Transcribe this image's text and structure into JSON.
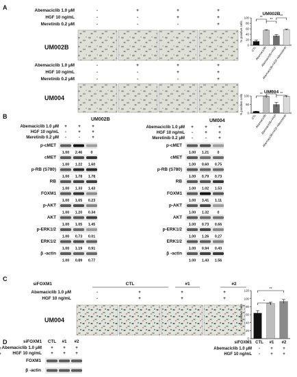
{
  "panels": {
    "A": "A",
    "B": "B",
    "C": "C",
    "D": "D"
  },
  "treat": {
    "aba": "Abemaciclib 1.0 μM",
    "hgf": "HGF 10 ng/mL",
    "mer": "Meretinib 0.2 μM",
    "sifoxm1": "siFOXM1"
  },
  "signs": {
    "A_top": [
      [
        "-",
        "+",
        "+",
        "+"
      ],
      [
        "-",
        "-",
        "+",
        "+"
      ],
      [
        "-",
        "-",
        "-",
        "+"
      ]
    ],
    "A_bot": [
      [
        "-",
        "+",
        "+",
        "+"
      ],
      [
        "-",
        "-",
        "+",
        "+"
      ],
      [
        "-",
        "-",
        "-",
        "+"
      ]
    ],
    "B_left": [
      [
        "+",
        "+",
        "+"
      ],
      [
        "-",
        "+",
        "+"
      ],
      [
        "-",
        "-",
        "+"
      ]
    ],
    "B_right": [
      [
        "+",
        "+",
        "+"
      ],
      [
        "-",
        "+",
        "+"
      ],
      [
        "-",
        "-",
        "+"
      ]
    ],
    "C": [
      [
        "-",
        "+",
        "+",
        "+"
      ],
      [
        "-",
        "+",
        "+",
        "+"
      ]
    ],
    "D": [
      [
        "+",
        "+",
        "+"
      ],
      [
        "+",
        "+",
        "+"
      ]
    ]
  },
  "cell_lines": {
    "um002b": "UM002B",
    "um004": "UM004"
  },
  "siRNA": {
    "ctl": "CTL",
    "n1": "#1",
    "n2": "#2"
  },
  "blot_left": [
    {
      "label": "p-cMET",
      "vals": [
        "1.00",
        "2.46",
        "0"
      ]
    },
    {
      "label": "cMET",
      "vals": [
        "1.00",
        "1.22",
        "1.60"
      ]
    },
    {
      "label": "p-RB (S780)",
      "vals": [
        "1.00",
        "1.78",
        "1.78"
      ]
    },
    {
      "label": "RB",
      "vals": [
        "1.00",
        "1.33",
        "1.43"
      ]
    },
    {
      "label": "FOXM1",
      "vals": [
        "1.00",
        "1.65",
        "0.23"
      ]
    },
    {
      "label": "p-AKT",
      "vals": [
        "1.00",
        "1.20",
        "0.34"
      ]
    },
    {
      "label": "AKT",
      "vals": [
        "1.00",
        "1.05",
        "1.45"
      ]
    },
    {
      "label": "p-ERK1/2",
      "vals": [
        "1.00",
        "0.73",
        "0.01"
      ]
    },
    {
      "label": "ERK1/2",
      "vals": [
        "1.00",
        "1.19",
        "0.91"
      ]
    },
    {
      "label": "β -actin",
      "vals": [
        "1.00",
        "0.89",
        "0.77"
      ]
    }
  ],
  "blot_right": [
    {
      "label": "p-cMET",
      "vals": [
        "1.00",
        "1.21",
        "0"
      ]
    },
    {
      "label": "cMET",
      "vals": [
        "1.00",
        "0.60",
        "0.75"
      ]
    },
    {
      "label": "p-RB (S780)",
      "vals": [
        "1.00",
        "0.79",
        "0.73"
      ]
    },
    {
      "label": "RB",
      "vals": [
        "1.00",
        "1.02",
        "1.53"
      ]
    },
    {
      "label": "FOXM1",
      "vals": [
        "1.00",
        "3.41",
        "1.11"
      ]
    },
    {
      "label": "p-AKT",
      "vals": [
        "1.00",
        "1.32",
        "0"
      ]
    },
    {
      "label": "AKT",
      "vals": [
        "1.00",
        "0.73",
        "0.66"
      ]
    },
    {
      "label": "p-ERK1/2",
      "vals": [
        "1.00",
        "1.26",
        "0.27"
      ]
    },
    {
      "label": "ERK1/2",
      "vals": [
        "1.00",
        "0.94",
        "0.43"
      ]
    },
    {
      "label": "β -actin",
      "vals": [
        "1.00",
        "1.43",
        "1.56"
      ]
    }
  ],
  "blot_d": [
    {
      "label": "FOXM1"
    },
    {
      "label": "β -actin"
    }
  ],
  "chart_data": [
    {
      "type": "bar",
      "title": "UM002B",
      "ylabel": "% positive cells",
      "categories": [
        "CTL",
        "Abemaciclib",
        "Abemaciclib+HGF",
        "Abemaciclib+HGF+Merestinib"
      ],
      "values": [
        14,
        55,
        34,
        57
      ],
      "errors": [
        5,
        2,
        5,
        2
      ],
      "colors": [
        "#111111",
        "#bdbdbd",
        "#6e6e6e",
        "#d9d9d9"
      ],
      "ylim": [
        0,
        100
      ],
      "yticks": [
        "0",
        "20",
        "40",
        "60",
        "80",
        "100"
      ],
      "sig": [
        "**",
        "**",
        "**"
      ]
    },
    {
      "type": "bar",
      "title": "UM004",
      "ylabel": "% positive cells",
      "categories": [
        "CTL",
        "Abemaciclib",
        "Abemaciclib+HGF",
        "Abemaciclib+HGF+Merestinib"
      ],
      "values": [
        10,
        99,
        50,
        99
      ],
      "errors": [
        1,
        1,
        13,
        1
      ],
      "colors": [
        "#111111",
        "#bdbdbd",
        "#6e6e6e",
        "#d9d9d9"
      ],
      "ylim": [
        0,
        100
      ],
      "yticks": [
        "0",
        "50",
        "100"
      ],
      "sig": [
        "**",
        "**",
        "**"
      ]
    },
    {
      "type": "bar",
      "title": "",
      "ylabel": "% positive cells",
      "categories": [
        "CTL",
        "#1",
        "#2"
      ],
      "values": [
        64,
        88,
        93
      ],
      "errors": [
        6,
        3,
        5
      ],
      "colors": [
        "#111111",
        "#bdbdbd",
        "#8a8a8a"
      ],
      "ylim": [
        0,
        120
      ],
      "yticks": [
        "0",
        "20",
        "40",
        "60",
        "80",
        "100",
        "120"
      ],
      "sig": [
        "*",
        "**"
      ]
    }
  ]
}
